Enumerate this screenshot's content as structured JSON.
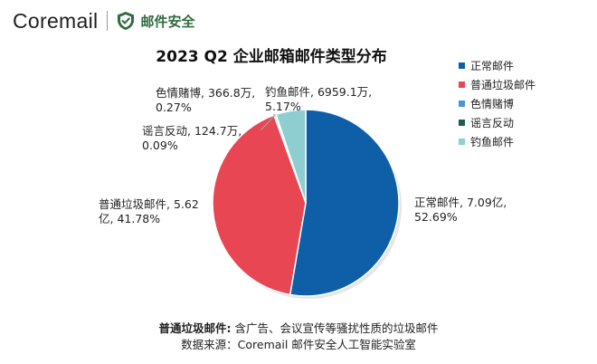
{
  "brand": {
    "name": "Coremail",
    "tag": "邮件安全"
  },
  "chart_data": {
    "type": "pie",
    "title": "2023 Q2 企业邮箱邮件类型分布",
    "legend_position": "right",
    "series": [
      {
        "name": "正常邮件",
        "label_value": "7.09亿",
        "percent": 52.69,
        "color": "#0e5fa8"
      },
      {
        "name": "普通垃圾邮件",
        "label_value": "5.62亿",
        "percent": 41.78,
        "color": "#e84653"
      },
      {
        "name": "色情赌博",
        "label_value": "366.8万",
        "percent": 0.27,
        "color": "#4f95d6"
      },
      {
        "name": "谣言反动",
        "label_value": "124.7万",
        "percent": 0.09,
        "color": "#1c5e56"
      },
      {
        "name": "钓鱼邮件",
        "label_value": "6959.1万",
        "percent": 5.17,
        "color": "#8ecdd0"
      }
    ],
    "data_labels": [
      {
        "line1": "正常邮件, 7.09亿,",
        "line2": "52.69%"
      },
      {
        "line1": "普通垃圾邮件, 5.62",
        "line2": "亿, 41.78%"
      },
      {
        "line1": "色情赌博, 366.8万,",
        "line2": "0.27%"
      },
      {
        "line1": "谣言反动, 124.7万,",
        "line2": "0.09%"
      },
      {
        "line1": "钓鱼邮件, 6959.1万,",
        "line2": "5.17%"
      }
    ]
  },
  "footnote": {
    "term": "普通垃圾邮件:",
    "definition": "含广告、会议宣传等骚扰性质的垃圾邮件",
    "source": "数据来源：Coremail 邮件安全人工智能实验室"
  }
}
